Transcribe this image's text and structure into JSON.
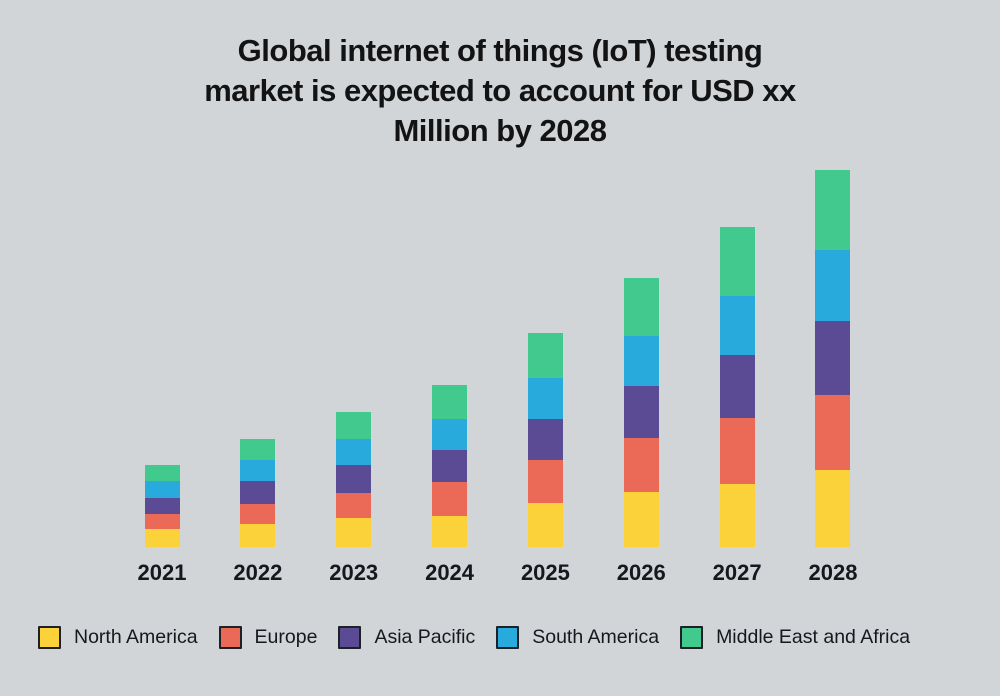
{
  "title_lines": [
    "Global internet of things (IoT) testing",
    "market is expected to account for USD xx",
    "Million by 2028"
  ],
  "colors": {
    "background": "#d1d5d8",
    "title_text": "#131313",
    "axis_label_text": "#15181d",
    "legend_text": "#15181d",
    "legend_swatch_border": "#1d2026"
  },
  "chart_data": {
    "type": "bar",
    "stacked": true,
    "title": "Global internet of things (IoT) testing market is expected to account for USD xx Million by 2028",
    "xlabel": "",
    "ylabel": "",
    "value_units": "relative (no y-axis shown; values intentionally hidden as 'USD xx Million')",
    "grid": false,
    "legend_position": "bottom",
    "categories": [
      "2021",
      "2022",
      "2023",
      "2024",
      "2025",
      "2026",
      "2027",
      "2028"
    ],
    "series": [
      {
        "name": "North America",
        "color": "#fcd23a",
        "values": [
          18,
          23,
          29,
          31,
          44,
          55,
          63,
          77
        ]
      },
      {
        "name": "Europe",
        "color": "#eb6a57",
        "values": [
          15,
          20,
          25,
          34,
          43,
          54,
          66,
          75
        ]
      },
      {
        "name": "Asia Pacific",
        "color": "#5b4a94",
        "values": [
          16,
          23,
          28,
          32,
          41,
          52,
          63,
          74
        ]
      },
      {
        "name": "South America",
        "color": "#29aadd",
        "values": [
          17,
          21,
          26,
          31,
          41,
          50,
          59,
          71
        ]
      },
      {
        "name": "Middle East and Africa",
        "color": "#41c98e",
        "values": [
          16,
          21,
          27,
          34,
          45,
          58,
          69,
          80
        ]
      }
    ],
    "totals": [
      82,
      108,
      135,
      162,
      214,
      269,
      320,
      377
    ]
  }
}
